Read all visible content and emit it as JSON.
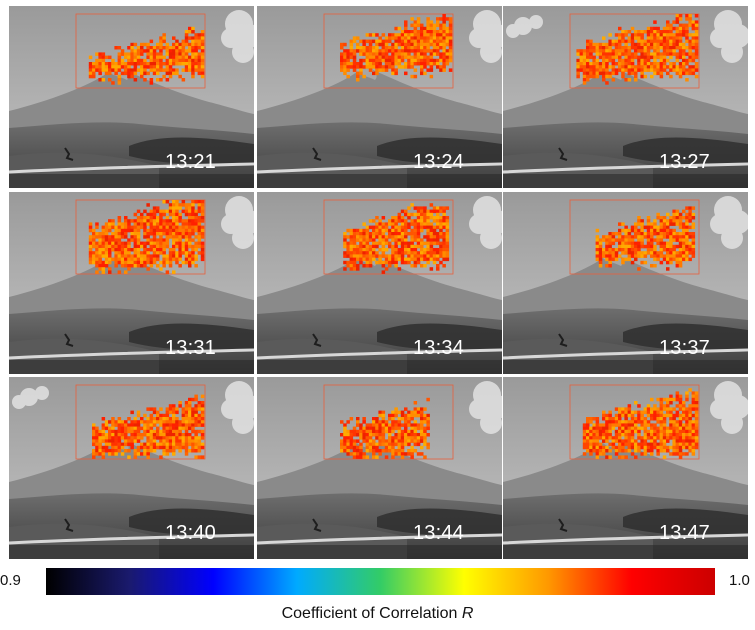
{
  "figure": {
    "panels": [
      {
        "time": "13:21"
      },
      {
        "time": "13:24"
      },
      {
        "time": "13:27"
      },
      {
        "time": "13:31"
      },
      {
        "time": "13:34"
      },
      {
        "time": "13:37"
      },
      {
        "time": "13:40"
      },
      {
        "time": "13:44"
      },
      {
        "time": "13:47"
      }
    ],
    "colorbar": {
      "min_label": "0.9",
      "max_label": "1.0",
      "title": "Coefficient of Correlation",
      "title_symbol": "R",
      "colors": [
        "#000000",
        "#1a1a6e",
        "#0000ff",
        "#00aaff",
        "#33cc66",
        "#ffff00",
        "#ff9900",
        "#ff0000",
        "#cc0000"
      ]
    },
    "roi_color": "#e8603c"
  }
}
